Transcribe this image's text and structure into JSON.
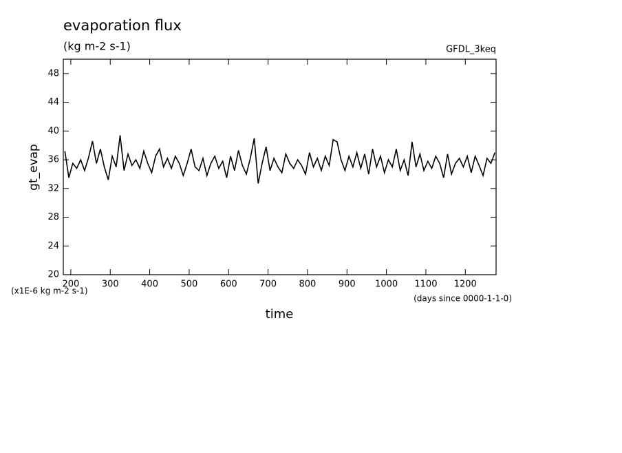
{
  "chart_data": {
    "type": "line",
    "title": "evaporation flux",
    "subtitle": "(kg m-2 s-1)",
    "dataset": "GFDL_3keq",
    "y_label": "gt_evap",
    "y_units": "(x1E-6 kg m-2 s-1)",
    "x_units": "(days since 0000-1-1-0)",
    "x_label": "time",
    "xlim": [
      181,
      1278
    ],
    "ylim": [
      20,
      50
    ],
    "xticks": [
      200,
      300,
      400,
      500,
      600,
      700,
      800,
      900,
      1000,
      1100,
      1200
    ],
    "yticks": [
      20,
      24,
      28,
      32,
      36,
      40,
      44,
      48
    ],
    "x": [
      185,
      195,
      205,
      215,
      225,
      235,
      245,
      255,
      265,
      275,
      285,
      295,
      305,
      315,
      325,
      335,
      345,
      355,
      365,
      375,
      385,
      395,
      405,
      415,
      425,
      435,
      445,
      455,
      465,
      475,
      485,
      495,
      505,
      515,
      525,
      535,
      545,
      555,
      565,
      575,
      585,
      595,
      605,
      615,
      625,
      635,
      645,
      655,
      665,
      675,
      685,
      695,
      705,
      715,
      725,
      735,
      745,
      755,
      765,
      775,
      785,
      795,
      805,
      815,
      825,
      835,
      845,
      855,
      865,
      875,
      885,
      895,
      905,
      915,
      925,
      935,
      945,
      955,
      965,
      975,
      985,
      995,
      1005,
      1015,
      1025,
      1035,
      1045,
      1055,
      1065,
      1075,
      1085,
      1095,
      1105,
      1115,
      1125,
      1135,
      1145,
      1155,
      1165,
      1175,
      1185,
      1195,
      1205,
      1215,
      1225,
      1235,
      1245,
      1255,
      1265,
      1275
    ],
    "series": [
      {
        "name": "gt_evap",
        "color": "#000000",
        "values": [
          37.2,
          33.5,
          35.5,
          34.8,
          36,
          34.5,
          36.3,
          38.6,
          35.5,
          37.5,
          35,
          33.2,
          36.5,
          35,
          39.4,
          34.5,
          36.8,
          35.2,
          36,
          34.8,
          37.2,
          35.5,
          34.2,
          36.5,
          37.5,
          35,
          36.2,
          34.8,
          36.5,
          35.5,
          33.8,
          35.5,
          37.5,
          35,
          34.5,
          36.2,
          33.8,
          35.5,
          36.5,
          34.8,
          35.8,
          33.5,
          36.5,
          34.5,
          37.3,
          35.2,
          34,
          36.2,
          39,
          32.7,
          35.5,
          37.8,
          34.5,
          36.2,
          35,
          34.2,
          36.8,
          35.5,
          34.8,
          36,
          35.2,
          34,
          37,
          35,
          36.2,
          34.5,
          36.5,
          35.2,
          38.8,
          38.5,
          36,
          34.5,
          36.5,
          35,
          37,
          34.8,
          36.8,
          34,
          37.5,
          35,
          36.5,
          34.2,
          36,
          35,
          37.5,
          34.5,
          36,
          33.8,
          38.5,
          35,
          36.8,
          34.5,
          35.8,
          34.8,
          36.5,
          35.5,
          33.5,
          36.8,
          34,
          35.5,
          36.2,
          35,
          36.5,
          34.2,
          36.5,
          35.2,
          33.8,
          36.2,
          35.5,
          37
        ]
      }
    ]
  }
}
